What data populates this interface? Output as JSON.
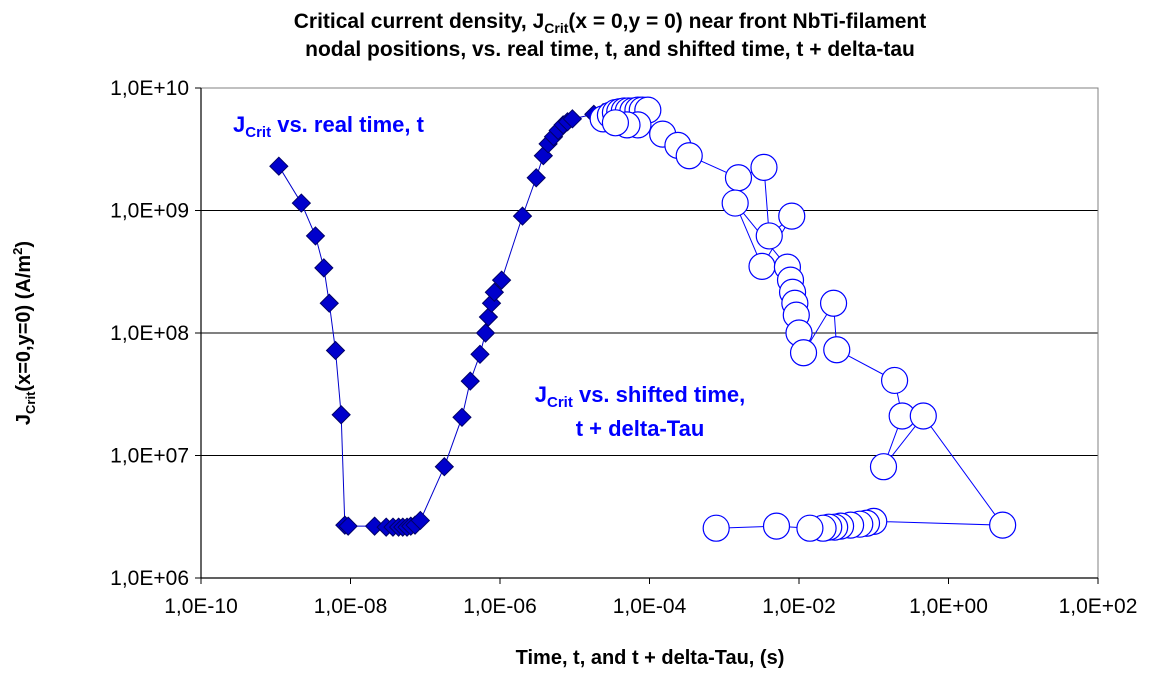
{
  "chart_data": {
    "type": "scatter",
    "title": {
      "line1_pre": "Critical current density, J",
      "line1_sub": "Crit",
      "line1_post": "(x = 0,y = 0) near front NbTi-filament",
      "line2": "nodal positions, vs. real time, t, and shifted time, t + delta-tau"
    },
    "xlabel": "Time, t, and t + delta-Tau, (s)",
    "ylabel": {
      "pre": "J",
      "sub": "Crit",
      "mid": "(x=0,y=0) (A/m",
      "sup": "2",
      "post": ")"
    },
    "x_scale": "log",
    "y_scale": "log",
    "xlim": [
      1e-10,
      100
    ],
    "ylim": [
      1000000,
      10000000000
    ],
    "x_tick_labels": [
      "1,0E-10",
      "1,0E-08",
      "1,0E-06",
      "1,0E-04",
      "1,0E-02",
      "1,0E+00",
      "1,0E+02"
    ],
    "y_tick_labels": [
      "1,0E+06",
      "1,0E+07",
      "1,0E+08",
      "1,0E+09",
      "1,0E+10"
    ],
    "grid": "horizontal major gridlines",
    "annotations": [
      {
        "pre": "J",
        "sub": "Crit",
        "post": " vs. real time, t"
      },
      {
        "line1_pre": "J",
        "line1_sub": "Crit",
        "line1_post": " vs. shifted time,",
        "line2": "t + delta-Tau"
      }
    ],
    "series": [
      {
        "marker": "filled-diamond",
        "color": "#0000cc",
        "points": [
          [
            1.1e-09,
            2300000000.0
          ],
          [
            2.2e-09,
            1150000000.0
          ],
          [
            3.4e-09,
            620000000.0
          ],
          [
            4.4e-09,
            340000000.0
          ],
          [
            5.2e-09,
            175000000.0
          ],
          [
            6.3e-09,
            72000000.0
          ],
          [
            7.5e-09,
            21500000.0
          ],
          [
            8.4e-09,
            2700000.0
          ],
          [
            9.3e-09,
            2650000.0
          ],
          [
            2.1e-08,
            2650000.0
          ],
          [
            3e-08,
            2600000.0
          ],
          [
            3.7e-08,
            2600000.0
          ],
          [
            4.4e-08,
            2600000.0
          ],
          [
            5e-08,
            2600000.0
          ],
          [
            5.7e-08,
            2600000.0
          ],
          [
            6.4e-08,
            2650000.0
          ],
          [
            7.3e-08,
            2700000.0
          ],
          [
            8.6e-08,
            2950000.0
          ],
          [
            1.8e-07,
            8100000.0
          ],
          [
            3.1e-07,
            20500000.0
          ],
          [
            4e-07,
            40500000.0
          ],
          [
            5.4e-07,
            67000000.0
          ],
          [
            6.4e-07,
            100000000.0
          ],
          [
            7e-07,
            135000000.0
          ],
          [
            7.7e-07,
            175000000.0
          ],
          [
            8.4e-07,
            215000000.0
          ],
          [
            1.05e-06,
            270000000.0
          ],
          [
            2e-06,
            900000000.0
          ],
          [
            3.05e-06,
            1850000000.0
          ],
          [
            3.8e-06,
            2800000000.0
          ],
          [
            4.4e-06,
            3500000000.0
          ],
          [
            5.2e-06,
            4000000000.0
          ],
          [
            6e-06,
            4500000000.0
          ],
          [
            7e-06,
            5000000000.0
          ],
          [
            8e-06,
            5300000000.0
          ],
          [
            9.3e-06,
            5600000000.0
          ],
          [
            1.8e-05,
            6100000000.0
          ],
          [
            2.4e-05,
            6300000000.0
          ],
          [
            3e-05,
            6400000000.0
          ]
        ]
      },
      {
        "marker": "open-circle",
        "color": "#0000ff",
        "points": [
          [
            2.4e-05,
            5600000000.0
          ],
          [
            3e-05,
            6000000000.0
          ],
          [
            3.5e-05,
            6300000000.0
          ],
          [
            4e-05,
            6400000000.0
          ],
          [
            4.6e-05,
            6500000000.0
          ],
          [
            5.2e-05,
            6500000000.0
          ],
          [
            6e-05,
            6500000000.0
          ],
          [
            7e-05,
            6600000000.0
          ],
          [
            8e-05,
            6600000000.0
          ],
          [
            9.5e-05,
            6600000000.0
          ],
          [
            7e-05,
            5000000000.0
          ],
          [
            5e-05,
            5000000000.0
          ],
          [
            3.5e-05,
            5200000000.0
          ],
          [
            0.00015,
            4200000000.0
          ],
          [
            0.00024,
            3400000000.0
          ],
          [
            0.00034,
            2800000000.0
          ],
          [
            0.00155,
            1850000000.0
          ],
          [
            0.0034,
            2250000000.0
          ],
          [
            0.004,
            620000000.0
          ],
          [
            0.008,
            900000000.0
          ],
          [
            0.0032,
            350000000.0
          ],
          [
            0.0014,
            1150000000.0
          ],
          [
            0.007,
            345000000.0
          ],
          [
            0.0077,
            270000000.0
          ],
          [
            0.0082,
            215000000.0
          ],
          [
            0.0088,
            175000000.0
          ],
          [
            0.0092,
            140000000.0
          ],
          [
            0.01,
            100000000.0
          ],
          [
            0.0115,
            69000000.0
          ],
          [
            0.029,
            175000000.0
          ],
          [
            0.032,
            73000000.0
          ],
          [
            0.19,
            41000000.0
          ],
          [
            0.24,
            21000000.0
          ],
          [
            0.135,
            8100000.0
          ],
          [
            0.46,
            21000000.0
          ],
          [
            5.3,
            2700000.0
          ],
          [
            0.1,
            2900000.0
          ],
          [
            0.08,
            2800000.0
          ],
          [
            0.065,
            2750000.0
          ],
          [
            0.049,
            2700000.0
          ],
          [
            0.036,
            2650000.0
          ],
          [
            0.03,
            2600000.0
          ],
          [
            0.025,
            2600000.0
          ],
          [
            0.021,
            2550000.0
          ],
          [
            0.014,
            2550000.0
          ],
          [
            0.005,
            2650000.0
          ],
          [
            0.00078,
            2550000.0
          ]
        ]
      }
    ]
  }
}
